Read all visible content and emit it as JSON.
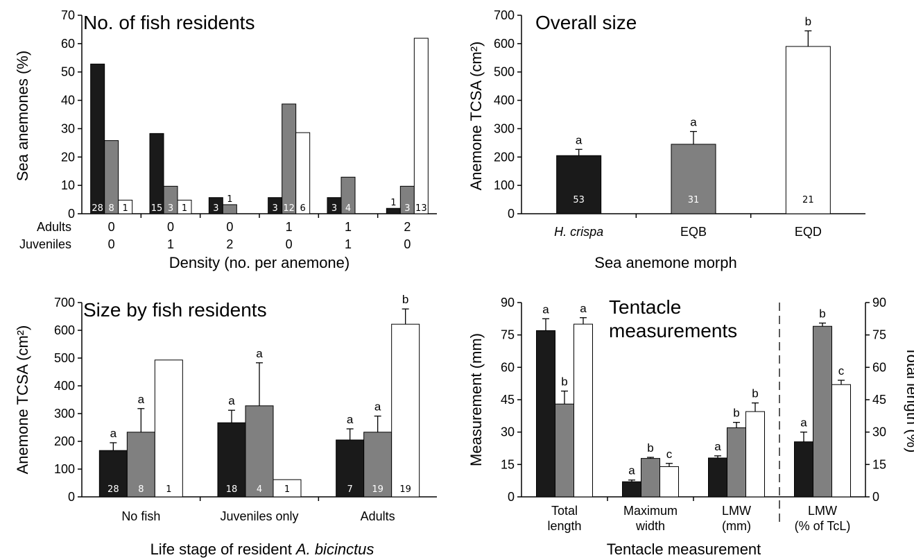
{
  "colors": {
    "black": "#1a1a1a",
    "gray": "#808080",
    "white": "#ffffff"
  },
  "chart_data": [
    {
      "type": "bar",
      "title": "No. of fish residents",
      "ylabel": "Sea anemones (%)",
      "xlabel": "Density (no. per anemone)",
      "ylim": [
        0,
        70
      ],
      "yticks": [
        "0",
        "10",
        "20",
        "30",
        "40",
        "50",
        "60",
        "70"
      ],
      "row_labels": [
        "Adults",
        "Juveniles"
      ],
      "adults": [
        "0",
        "0",
        "0",
        "1",
        "1",
        "2"
      ],
      "juveniles": [
        "0",
        "1",
        "2",
        "0",
        "1",
        "0"
      ],
      "series": [
        {
          "values": [
            52.8,
            28.3,
            5.7,
            5.7,
            5.7,
            1.9
          ],
          "counts": [
            "28",
            "15",
            "3",
            "3",
            "3",
            "1"
          ]
        },
        {
          "values": [
            25.8,
            9.7,
            3.2,
            38.7,
            12.9,
            9.7
          ],
          "counts": [
            "8",
            "3",
            "1",
            "12",
            "4",
            "3"
          ]
        },
        {
          "values": [
            4.8,
            4.8,
            0,
            28.6,
            0,
            61.9
          ],
          "counts": [
            "1",
            "1",
            "",
            "6",
            "",
            "13"
          ]
        }
      ]
    },
    {
      "type": "bar",
      "title": "Overall size",
      "ylabel": "Anemone TCSA (cm²)",
      "xlabel": "Sea anemone morph",
      "ylim": [
        0,
        700
      ],
      "yticks": [
        "0",
        "100",
        "200",
        "300",
        "400",
        "500",
        "600",
        "700"
      ],
      "categories": [
        "H. crispa",
        "EQB",
        "EQD"
      ],
      "values": [
        205,
        245,
        590
      ],
      "errors": [
        22,
        45,
        55
      ],
      "letters": [
        "a",
        "a",
        "b"
      ],
      "counts": [
        "53",
        "31",
        "21"
      ]
    },
    {
      "type": "bar",
      "title": "Size by fish residents",
      "ylabel": "Anemone TCSA (cm²)",
      "xlabel_prefix": "Life stage of resident ",
      "xlabel_species": "A. bicinctus",
      "ylim": [
        0,
        700
      ],
      "yticks": [
        "0",
        "100",
        "200",
        "300",
        "400",
        "500",
        "600",
        "700"
      ],
      "categories": [
        "No fish",
        "Juveniles only",
        "Adults"
      ],
      "series": [
        {
          "values": [
            167,
            267,
            205
          ],
          "errors": [
            28,
            45,
            40
          ],
          "letters": [
            "a",
            "a",
            "a"
          ],
          "counts": [
            "28",
            "18",
            "7"
          ]
        },
        {
          "values": [
            233,
            328,
            233
          ],
          "errors": [
            85,
            155,
            58
          ],
          "letters": [
            "a",
            "a",
            "a"
          ],
          "counts": [
            "8",
            "4",
            "19"
          ]
        },
        {
          "values": [
            493,
            62,
            622
          ],
          "errors": [
            0,
            0,
            55
          ],
          "letters": [
            "",
            "",
            "b"
          ],
          "counts": [
            "1",
            "1",
            "19"
          ]
        }
      ]
    },
    {
      "type": "bar",
      "title": "Tentacle measurements",
      "title_lines": [
        "Tentacle",
        "measurements"
      ],
      "ylabel": "Measurement (mm)",
      "ylabel_right": "Total length (%)",
      "xlabel": "Tentacle measurement",
      "ylim": [
        0,
        90
      ],
      "yticks": [
        "0",
        "15",
        "30",
        "45",
        "60",
        "75",
        "90"
      ],
      "categories": [
        [
          "Total",
          "length"
        ],
        [
          "Maximum",
          "width"
        ],
        [
          "LMW",
          "(mm)"
        ],
        [
          "LMW",
          "(% of TcL)"
        ]
      ],
      "series": [
        {
          "values": [
            77,
            7,
            18,
            25.5
          ],
          "errors": [
            5.5,
            0.8,
            1,
            4.5
          ],
          "letters": [
            "a",
            "a",
            "a",
            "a"
          ]
        },
        {
          "values": [
            43,
            17.8,
            32,
            79
          ],
          "errors": [
            6,
            0.5,
            2.5,
            1.5
          ],
          "letters": [
            "b",
            "b",
            "b",
            "b"
          ]
        },
        {
          "values": [
            80,
            14,
            39.5,
            52
          ],
          "errors": [
            3,
            1.5,
            4,
            2
          ],
          "letters": [
            "a",
            "c",
            "b",
            "c"
          ]
        }
      ]
    }
  ]
}
